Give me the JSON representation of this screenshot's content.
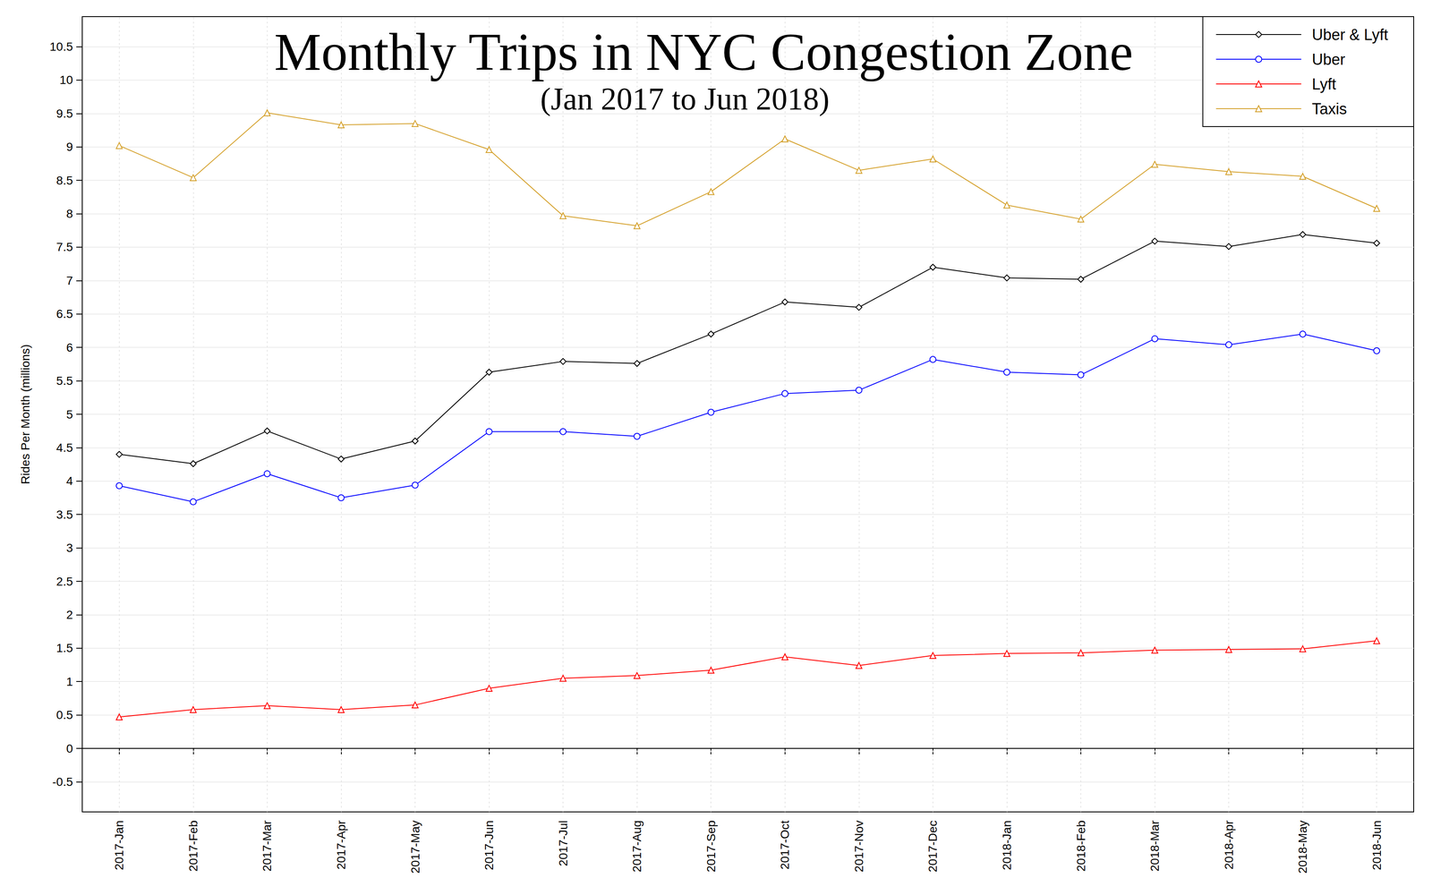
{
  "chart_data": {
    "type": "line",
    "title": "Monthly Trips in NYC Congestion Zone",
    "subtitle": "(Jan 2017 to Jun 2018)",
    "y_label": "Rides Per Month (millions)",
    "categories": [
      "2017-Jan",
      "2017-Feb",
      "2017-Mar",
      "2017-Apr",
      "2017-May",
      "2017-Jun",
      "2017-Jul",
      "2017-Aug",
      "2017-Sep",
      "2017-Oct",
      "2017-Nov",
      "2017-Dec",
      "2018-Jan",
      "2018-Feb",
      "2018-Mar",
      "2018-Apr",
      "2018-May",
      "2018-Jun"
    ],
    "series": [
      {
        "name": "Uber & Lyft",
        "color": "#000000",
        "marker": "diamond",
        "values": [
          4.4,
          4.26,
          4.75,
          4.33,
          4.6,
          5.63,
          5.79,
          5.76,
          6.2,
          6.68,
          6.6,
          7.2,
          7.04,
          7.02,
          7.59,
          7.51,
          7.69,
          7.56
        ]
      },
      {
        "name": "Uber",
        "color": "#0000ff",
        "marker": "circle",
        "values": [
          3.93,
          3.69,
          4.11,
          3.75,
          3.94,
          4.74,
          4.74,
          4.67,
          5.03,
          5.31,
          5.36,
          5.82,
          5.63,
          5.59,
          6.13,
          6.04,
          6.2,
          5.95
        ]
      },
      {
        "name": "Lyft",
        "color": "#ff0000",
        "marker": "triangle",
        "values": [
          0.47,
          0.58,
          0.64,
          0.58,
          0.65,
          0.9,
          1.05,
          1.09,
          1.17,
          1.37,
          1.24,
          1.39,
          1.42,
          1.43,
          1.47,
          1.48,
          1.49,
          1.61
        ]
      },
      {
        "name": "Taxis",
        "color": "#d4a02a",
        "marker": "triangle",
        "values": [
          9.02,
          8.54,
          9.51,
          9.33,
          9.35,
          8.96,
          7.97,
          7.82,
          8.33,
          9.12,
          8.65,
          8.82,
          8.13,
          7.92,
          8.74,
          8.63,
          8.56,
          8.08
        ]
      }
    ],
    "ylim": [
      -0.95,
      10.95
    ],
    "yticks": [
      -0.5,
      0,
      0.5,
      1,
      1.5,
      2,
      2.5,
      3,
      3.5,
      4,
      4.5,
      5,
      5.5,
      6,
      6.5,
      7,
      7.5,
      8,
      8.5,
      9,
      9.5,
      10,
      10.5
    ],
    "grid": true,
    "legend": "top-right"
  }
}
